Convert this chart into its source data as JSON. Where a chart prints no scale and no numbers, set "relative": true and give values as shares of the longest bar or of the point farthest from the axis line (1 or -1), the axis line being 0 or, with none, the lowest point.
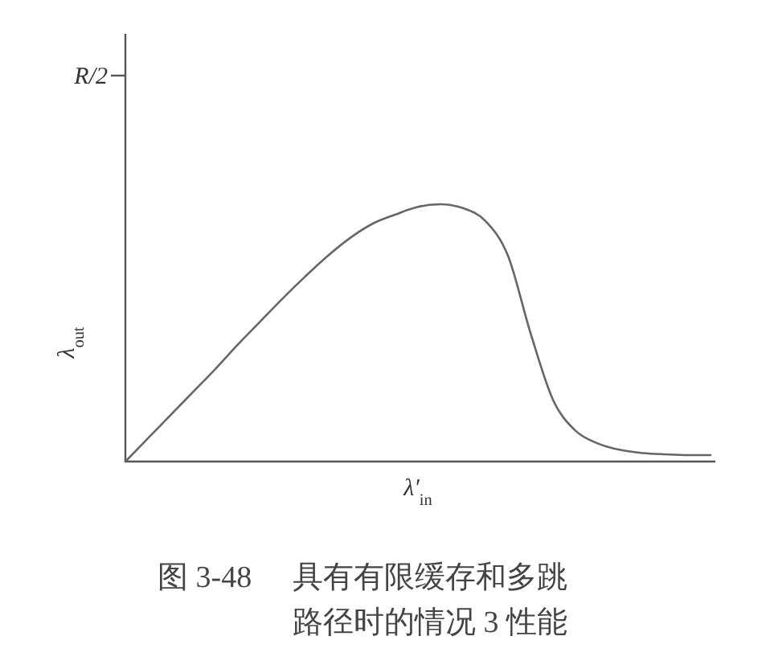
{
  "chart_data": {
    "type": "line",
    "relative": true,
    "xlabel": "λ′$_{in}$",
    "ylabel": "λ$_{out}$",
    "categories": [
      null,
      null,
      null,
      null,
      null,
      null,
      null,
      null,
      null,
      null,
      null,
      null,
      null,
      null,
      null,
      null,
      null,
      null,
      null,
      null,
      null,
      null,
      null,
      null,
      null,
      null,
      null
    ],
    "series": [
      {
        "color": "#666666",
        "values": [
          0,
          0.09,
          0.18,
          0.27,
          0.36,
          0.455,
          0.545,
          0.635,
          0.72,
          0.8,
          0.87,
          0.925,
          0.96,
          0.99,
          1,
          0.985,
          0.935,
          0.8,
          0.5,
          0.24,
          0.12,
          0.07,
          0.045,
          0.033,
          0.028,
          0.025,
          0.025
        ]
      }
    ],
    "annotations": [
      "R/2",
      "图 3-48",
      "具有有限缓存和多跳路径时的情况 3 性能"
    ]
  }
}
